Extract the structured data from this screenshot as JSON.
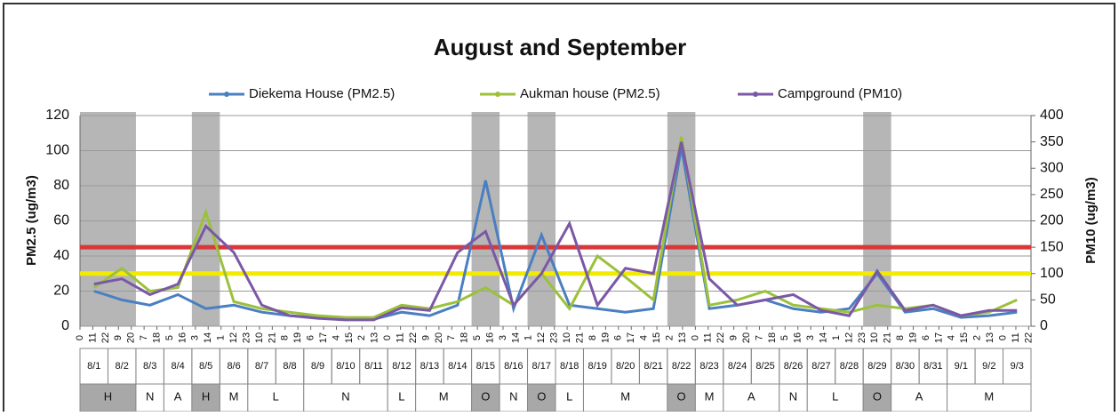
{
  "chart_data": {
    "type": "line",
    "title": "August and September",
    "y_label": "PM2.5 (ug/m3)",
    "y2_label": "PM10 (ug/m3)",
    "ylim": [
      0,
      120
    ],
    "yticks": [
      0,
      20,
      40,
      60,
      80,
      100,
      120
    ],
    "y2lim": [
      0,
      400
    ],
    "y2ticks": [
      0,
      50,
      100,
      150,
      200,
      250,
      300,
      350,
      400
    ],
    "xlim": [
      0,
      816
    ],
    "grid": true,
    "xticks": [
      {
        "value": 0,
        "label": "0"
      },
      {
        "value": 11,
        "label": "11"
      },
      {
        "value": 22,
        "label": "22"
      },
      {
        "value": 33,
        "label": "9"
      },
      {
        "value": 44,
        "label": "20"
      },
      {
        "value": 55,
        "label": "7"
      },
      {
        "value": 66,
        "label": "18"
      },
      {
        "value": 77,
        "label": "5"
      },
      {
        "value": 88,
        "label": "16"
      },
      {
        "value": 99,
        "label": "3"
      },
      {
        "value": 110,
        "label": "14"
      },
      {
        "value": 121,
        "label": "1"
      },
      {
        "value": 132,
        "label": "12"
      },
      {
        "value": 143,
        "label": "23"
      },
      {
        "value": 154,
        "label": "10"
      },
      {
        "value": 165,
        "label": "21"
      },
      {
        "value": 176,
        "label": "8"
      },
      {
        "value": 187,
        "label": "19"
      },
      {
        "value": 198,
        "label": "6"
      },
      {
        "value": 209,
        "label": "17"
      },
      {
        "value": 220,
        "label": "4"
      },
      {
        "value": 231,
        "label": "15"
      },
      {
        "value": 242,
        "label": "2"
      },
      {
        "value": 253,
        "label": "13"
      },
      {
        "value": 264,
        "label": "0"
      },
      {
        "value": 275,
        "label": "11"
      },
      {
        "value": 286,
        "label": "22"
      },
      {
        "value": 297,
        "label": "9"
      },
      {
        "value": 308,
        "label": "20"
      },
      {
        "value": 319,
        "label": "7"
      },
      {
        "value": 330,
        "label": "18"
      },
      {
        "value": 341,
        "label": "5"
      },
      {
        "value": 352,
        "label": "16"
      },
      {
        "value": 363,
        "label": "3"
      },
      {
        "value": 374,
        "label": "14"
      },
      {
        "value": 385,
        "label": "1"
      },
      {
        "value": 396,
        "label": "12"
      },
      {
        "value": 407,
        "label": "23"
      },
      {
        "value": 418,
        "label": "10"
      },
      {
        "value": 429,
        "label": "21"
      },
      {
        "value": 440,
        "label": "8"
      },
      {
        "value": 451,
        "label": "19"
      },
      {
        "value": 462,
        "label": "6"
      },
      {
        "value": 473,
        "label": "17"
      },
      {
        "value": 484,
        "label": "4"
      },
      {
        "value": 495,
        "label": "15"
      },
      {
        "value": 506,
        "label": "2"
      },
      {
        "value": 517,
        "label": "13"
      },
      {
        "value": 528,
        "label": "0"
      },
      {
        "value": 539,
        "label": "11"
      },
      {
        "value": 550,
        "label": "22"
      },
      {
        "value": 561,
        "label": "9"
      },
      {
        "value": 572,
        "label": "20"
      },
      {
        "value": 583,
        "label": "7"
      },
      {
        "value": 594,
        "label": "18"
      },
      {
        "value": 605,
        "label": "5"
      },
      {
        "value": 616,
        "label": "16"
      },
      {
        "value": 627,
        "label": "3"
      },
      {
        "value": 638,
        "label": "14"
      },
      {
        "value": 649,
        "label": "1"
      },
      {
        "value": 660,
        "label": "12"
      },
      {
        "value": 671,
        "label": "23"
      },
      {
        "value": 682,
        "label": "10"
      },
      {
        "value": 693,
        "label": "21"
      },
      {
        "value": 704,
        "label": "8"
      },
      {
        "value": 715,
        "label": "19"
      },
      {
        "value": 726,
        "label": "6"
      },
      {
        "value": 737,
        "label": "17"
      },
      {
        "value": 748,
        "label": "4"
      },
      {
        "value": 759,
        "label": "15"
      },
      {
        "value": 770,
        "label": "2"
      },
      {
        "value": 781,
        "label": "13"
      },
      {
        "value": 792,
        "label": "0"
      },
      {
        "value": 803,
        "label": "11"
      },
      {
        "value": 814,
        "label": "22"
      }
    ],
    "categories": [
      "8/1",
      "8/2",
      "8/3",
      "8/4",
      "8/5",
      "8/6",
      "8/7",
      "8/8",
      "8/9",
      "8/10",
      "8/11",
      "8/12",
      "8/13",
      "8/14",
      "8/15",
      "8/16",
      "8/17",
      "8/18",
      "8/19",
      "8/20",
      "8/21",
      "8/22",
      "8/23",
      "8/24",
      "8/25",
      "8/26",
      "8/27",
      "8/28",
      "8/29",
      "8/30",
      "8/31",
      "9/1",
      "9/2",
      "9/3"
    ],
    "x": [
      12,
      36,
      60,
      84,
      108,
      132,
      156,
      180,
      204,
      228,
      252,
      276,
      300,
      324,
      348,
      372,
      396,
      420,
      444,
      468,
      492,
      516,
      540,
      564,
      588,
      612,
      636,
      660,
      684,
      708,
      732,
      756,
      780,
      804
    ],
    "groups": [
      {
        "label": "H",
        "span": 2,
        "shaded": true
      },
      {
        "label": "N",
        "span": 1
      },
      {
        "label": "A",
        "span": 1
      },
      {
        "label": "H",
        "span": 1,
        "shaded": true
      },
      {
        "label": "M",
        "span": 1
      },
      {
        "label": "L",
        "span": 2
      },
      {
        "label": "N",
        "span": 3
      },
      {
        "label": "L",
        "span": 1
      },
      {
        "label": "M",
        "span": 2
      },
      {
        "label": "O",
        "span": 1,
        "shaded": true
      },
      {
        "label": "N",
        "span": 1
      },
      {
        "label": "O",
        "span": 1,
        "shaded": true
      },
      {
        "label": "L",
        "span": 1
      },
      {
        "label": "M",
        "span": 3
      },
      {
        "label": "O",
        "span": 1,
        "shaded": true
      },
      {
        "label": "M",
        "span": 1
      },
      {
        "label": "A",
        "span": 2
      },
      {
        "label": "N",
        "span": 1
      },
      {
        "label": "L",
        "span": 2
      },
      {
        "label": "O",
        "span": 1,
        "shaded": true
      },
      {
        "label": "A",
        "span": 2
      },
      {
        "label": "M",
        "span": 3
      }
    ],
    "reference_lines": [
      {
        "value": 150,
        "axis": "y2",
        "color": "#d9383a"
      },
      {
        "value": 100,
        "axis": "y2",
        "color": "#f2ea00"
      }
    ],
    "series": [
      {
        "name": "Diekema House (PM2.5)",
        "color": "#4a7fc1",
        "values": [
          20,
          15,
          12,
          18,
          10,
          12,
          8,
          6,
          5,
          4,
          4,
          8,
          6,
          12,
          83,
          10,
          52,
          12,
          10,
          8,
          10,
          102,
          10,
          12,
          15,
          10,
          8,
          10,
          30,
          8,
          10,
          5,
          6,
          8
        ]
      },
      {
        "name": "Aukman house (PM2.5)",
        "color": "#9bc13c",
        "values": [
          22,
          33,
          20,
          22,
          65,
          14,
          10,
          8,
          6,
          5,
          5,
          12,
          10,
          14,
          22,
          12,
          30,
          10,
          40,
          28,
          15,
          108,
          12,
          15,
          20,
          12,
          10,
          8,
          12,
          10,
          12,
          6,
          8,
          15
        ]
      },
      {
        "name": "Campground (PM10)",
        "color": "#7b58a6",
        "axis": "y2",
        "values": [
          80,
          90,
          60,
          80,
          190,
          140,
          40,
          20,
          15,
          12,
          12,
          35,
          30,
          140,
          180,
          40,
          100,
          195,
          40,
          110,
          100,
          350,
          90,
          40,
          50,
          60,
          30,
          20,
          105,
          30,
          40,
          20,
          30,
          30
        ]
      }
    ]
  }
}
